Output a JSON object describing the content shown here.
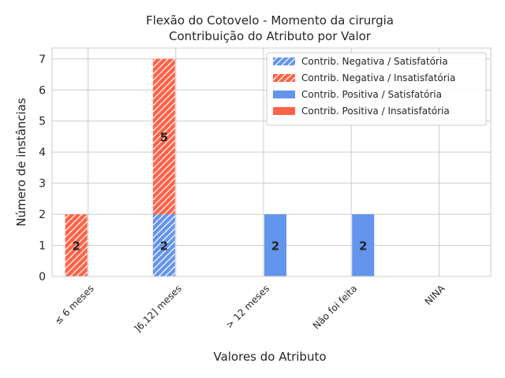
{
  "chart_data": {
    "type": "bar",
    "title_line1": "Flexão do Cotovelo - Momento da cirurgia",
    "title_line2": "Contribuição do Atributo por Valor",
    "xlabel": "Valores do Atributo",
    "ylabel": "Número de instâncias",
    "categories": [
      "≤ 6 meses",
      "]6,12] meses",
      "> 12 meses",
      "Não foi feita",
      "NINA"
    ],
    "yticks": [
      "0",
      "1",
      "2",
      "3",
      "4",
      "5",
      "6",
      "7"
    ],
    "ylim": [
      0,
      7.35
    ],
    "grid": true,
    "legend_position": "top-right",
    "colors": {
      "satisfatoria": "#6495ED",
      "insatisfatoria": "#FF6347"
    },
    "series": [
      {
        "name": "Contrib. Negativa / Satisfatória",
        "values": [
          0,
          2,
          0,
          0,
          0
        ],
        "hatch": true,
        "color": "#6495ED",
        "group": "negativa",
        "stack": 0
      },
      {
        "name": "Contrib. Negativa / Insatisfatória",
        "values": [
          2,
          5,
          0,
          0,
          0
        ],
        "hatch": true,
        "color": "#FF6347",
        "group": "negativa",
        "stack": 1
      },
      {
        "name": "Contrib. Positiva / Satisfatória",
        "values": [
          0,
          0,
          2,
          2,
          0
        ],
        "hatch": false,
        "color": "#6495ED",
        "group": "positiva",
        "stack": 0
      },
      {
        "name": "Contrib. Positiva / Insatisfatória",
        "values": [
          0,
          0,
          0,
          0,
          0
        ],
        "hatch": false,
        "color": "#FF6347",
        "group": "positiva",
        "stack": 1
      }
    ]
  }
}
